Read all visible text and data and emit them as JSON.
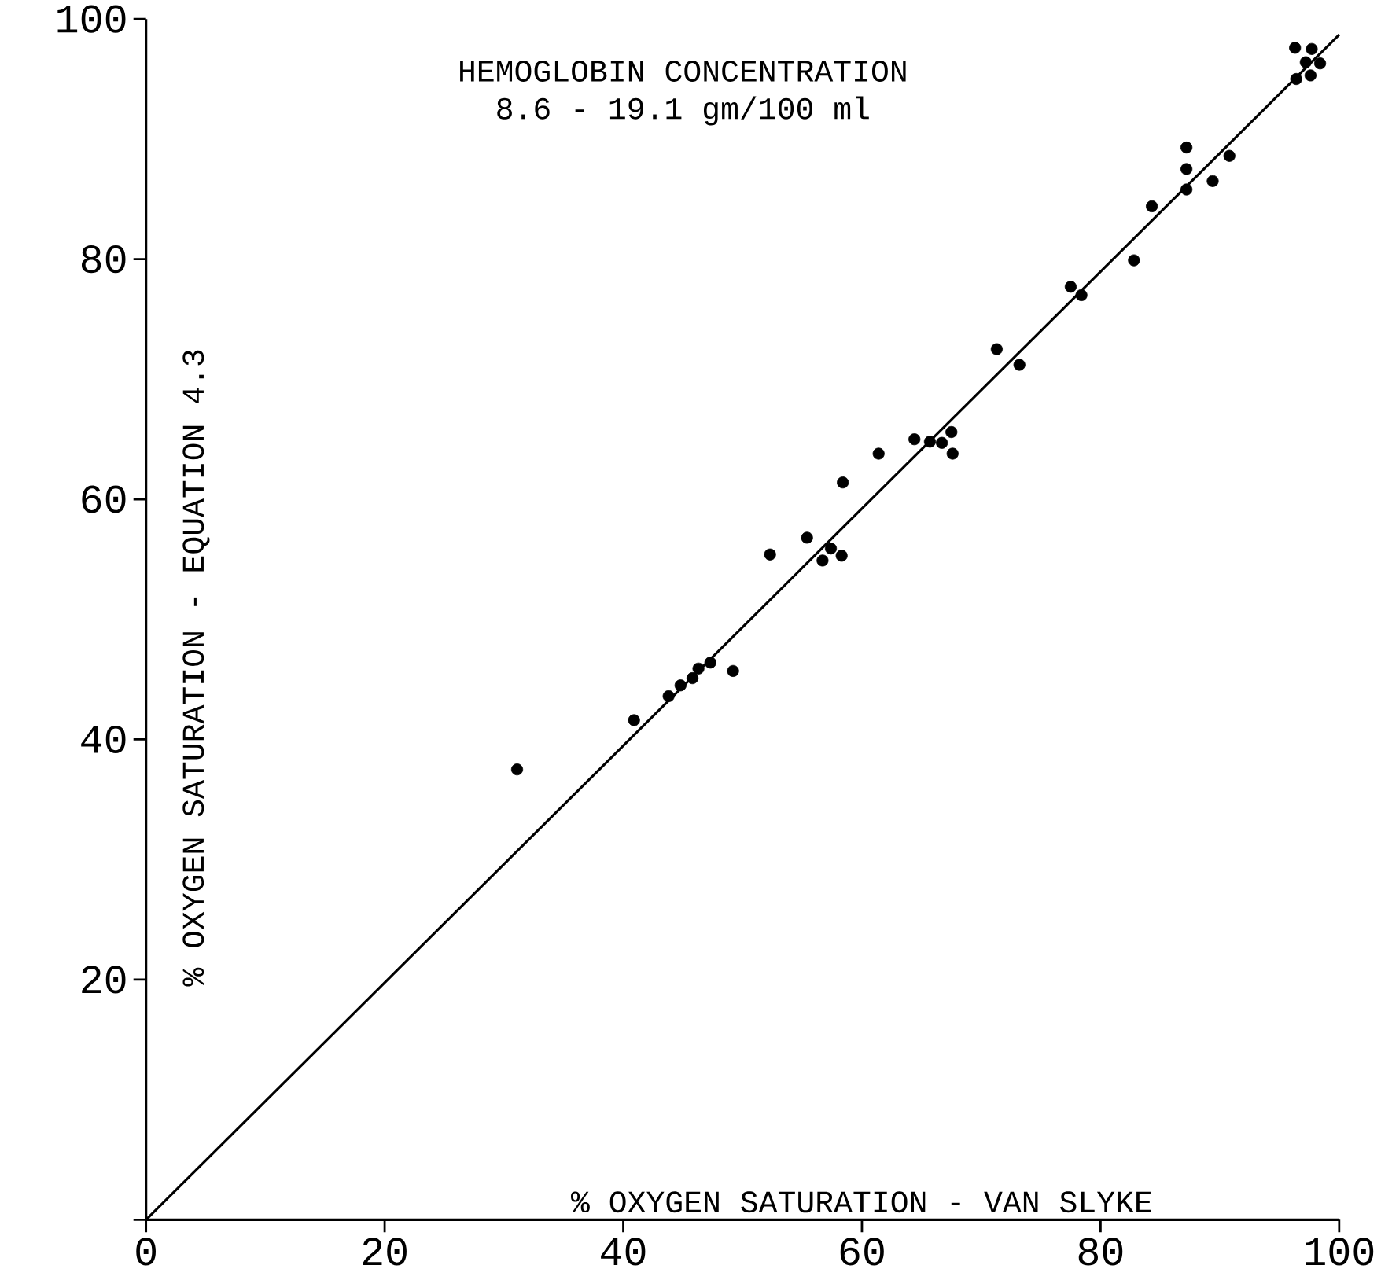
{
  "chart_data": {
    "type": "scatter",
    "title": "HEMOGLOBIN CONCENTRATION",
    "subtitle": "8.6 - 19.1 gm/100 ml",
    "xlabel": "% OXYGEN SATURATION - VAN SLYKE",
    "ylabel": "% OXYGEN SATURATION - EQUATION 4.3",
    "xlim": [
      0,
      100
    ],
    "ylim": [
      0,
      100
    ],
    "xticks": [
      0,
      20,
      40,
      60,
      80,
      100
    ],
    "yticks": [
      {
        "value": 0,
        "label": null
      },
      20,
      40,
      60,
      80,
      100
    ],
    "series": [
      {
        "color": "#000000",
        "marker": "circle",
        "x": [
          31.1,
          40.9,
          43.8,
          44.8,
          45.8,
          46.3,
          47.3,
          49.2,
          52.3,
          55.4,
          56.7,
          57.4,
          58.3,
          58.4,
          61.4,
          64.4,
          65.7,
          66.7,
          67.5,
          67.6,
          71.3,
          73.2,
          77.5,
          78.4,
          82.8,
          84.3,
          87.2,
          87.2,
          87.2,
          89.4,
          90.8,
          96.3,
          97.7,
          97.2,
          98.4,
          96.4,
          97.6
        ],
        "values": [
          37.5,
          41.6,
          43.6,
          44.5,
          45.1,
          45.9,
          46.4,
          45.7,
          55.4,
          56.8,
          54.9,
          55.9,
          55.3,
          61.4,
          63.8,
          65.0,
          64.8,
          64.7,
          65.6,
          63.8,
          72.5,
          71.2,
          77.7,
          77.0,
          79.9,
          84.4,
          89.3,
          87.5,
          85.8,
          86.5,
          88.6,
          97.6,
          97.5,
          96.4,
          96.3,
          95.0,
          95.3
        ]
      },
      {
        "type": "line",
        "color": "#000000",
        "marker": "none",
        "x": [
          0,
          100
        ],
        "values": [
          0,
          98.7
        ]
      }
    ]
  }
}
